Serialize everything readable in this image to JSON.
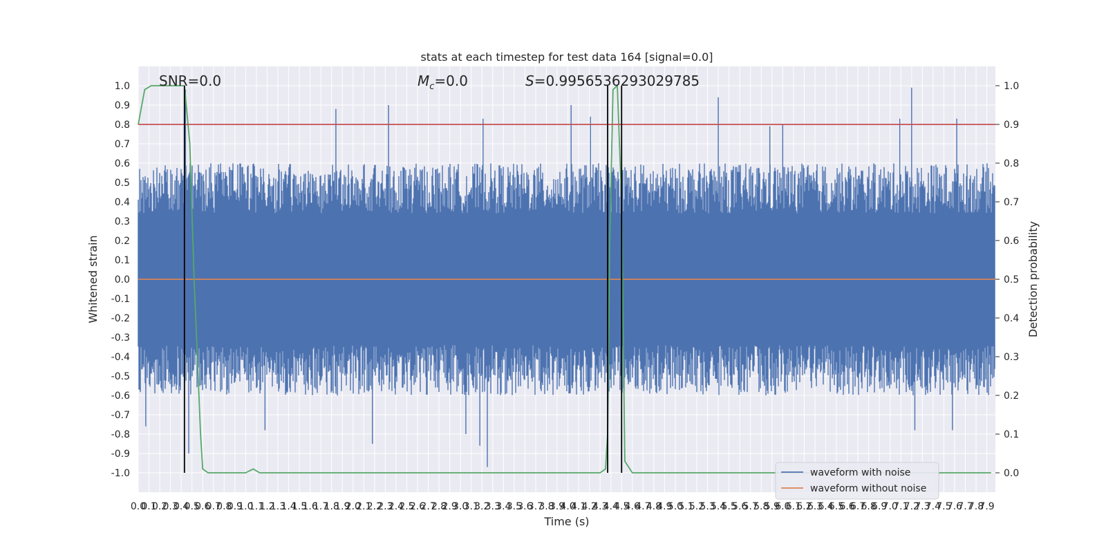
{
  "chart_data": {
    "type": "line",
    "title": "stats at each timestep for test data 164 [signal=0.0]",
    "xlabel": "Time (s)",
    "ylabel": "Whitened strain",
    "ylabel_right": "Detection probability",
    "xlim": [
      0,
      7.98
    ],
    "ylim": [
      -1.1,
      1.1
    ],
    "ylim_right": [
      -0.05,
      1.05
    ],
    "x_ticks": [
      0.0,
      0.1,
      0.2,
      0.3,
      0.4,
      0.5,
      0.6,
      0.7,
      0.8,
      0.9,
      1.0,
      1.1,
      1.2,
      1.3,
      1.4,
      1.5,
      1.6,
      1.7,
      1.8,
      1.9,
      2.0,
      2.1,
      2.2,
      2.3,
      2.4,
      2.5,
      2.6,
      2.7,
      2.8,
      2.9,
      3.0,
      3.1,
      3.2,
      3.3,
      3.4,
      3.5,
      3.6,
      3.7,
      3.8,
      3.9,
      4.0,
      4.1,
      4.2,
      4.3,
      4.4,
      4.5,
      4.6,
      4.7,
      4.8,
      4.9,
      5.0,
      5.1,
      5.2,
      5.3,
      5.4,
      5.5,
      5.6,
      5.7,
      5.8,
      5.9,
      6.0,
      6.1,
      6.2,
      6.3,
      6.4,
      6.5,
      6.6,
      6.7,
      6.8,
      6.9,
      7.0,
      7.1,
      7.2,
      7.3,
      7.4,
      7.5,
      7.6,
      7.7,
      7.8,
      7.9
    ],
    "x_tick_labels": [
      "0.0",
      "0.1",
      "0.2",
      "0.3",
      "0.4",
      "0.5",
      "0.6",
      "0.7",
      "0.8",
      "0.9",
      "1.0",
      "1.1",
      "1.2",
      "1.3",
      "1.4",
      "1.5",
      "1.6",
      "1.7",
      "1.8",
      "1.9",
      "2.0",
      "2.1",
      "2.2",
      "2.3",
      "2.4",
      "2.5",
      "2.6",
      "2.7",
      "2.8",
      "2.9",
      "3.0",
      "3.1",
      "3.2",
      "3.3",
      "3.4",
      "3.5",
      "3.6",
      "3.7",
      "3.8",
      "3.9",
      "4.0",
      "4.1",
      "4.2",
      "4.3",
      "4.4",
      "4.5",
      "4.6",
      "4.7",
      "4.8",
      "4.9",
      "5.0",
      "5.1",
      "5.2",
      "5.3",
      "5.4",
      "5.5",
      "5.6",
      "5.7",
      "5.8",
      "5.9",
      "6.0",
      "6.1",
      "6.2",
      "6.3",
      "6.4",
      "6.5",
      "6.6",
      "6.7",
      "6.8",
      "6.9",
      "7.0",
      "7.1",
      "7.2",
      "7.3",
      "7.4",
      "7.5",
      "7.6",
      "7.7",
      "7.8",
      "7.9"
    ],
    "y_ticks": [
      -1.0,
      -0.9,
      -0.8,
      -0.7,
      -0.6,
      -0.5,
      -0.4,
      -0.3,
      -0.2,
      -0.1,
      0.0,
      0.1,
      0.2,
      0.3,
      0.4,
      0.5,
      0.6,
      0.7,
      0.8,
      0.9,
      1.0
    ],
    "y_tick_labels": [
      "-1.0",
      "-0.9",
      "-0.8",
      "-0.7",
      "-0.6",
      "-0.5",
      "-0.4",
      "-0.3",
      "-0.2",
      "-0.1",
      "0.0",
      "0.1",
      "0.2",
      "0.3",
      "0.4",
      "0.5",
      "0.6",
      "0.7",
      "0.8",
      "0.9",
      "1.0"
    ],
    "y_right_ticks": [
      0.0,
      0.1,
      0.2,
      0.3,
      0.4,
      0.5,
      0.6,
      0.7,
      0.8,
      0.9,
      1.0
    ],
    "y_right_tick_labels": [
      "0.0",
      "0.1",
      "0.2",
      "0.3",
      "0.4",
      "0.5",
      "0.6",
      "0.7",
      "0.8",
      "0.9",
      "1.0"
    ],
    "threshold": 0.9,
    "vertical_lines_x": [
      0.43,
      4.37,
      4.5
    ],
    "grid": true,
    "legend_position": "lower right",
    "annotations": {
      "snr": "SNR=0.0",
      "mc_symbol": "M",
      "mc_subscript": "c",
      "mc_value": "=0.0",
      "s_symbol": "S",
      "s_value": "=0.9956536293029785"
    },
    "series": [
      {
        "name": "waveform with noise",
        "color": "#4c72b0",
        "kind": "noise",
        "envelope_typical": 0.4,
        "envelope_max": 1.0,
        "spikes": [
          {
            "x": 1.84,
            "y": 0.88
          },
          {
            "x": 2.33,
            "y": 0.9
          },
          {
            "x": 3.21,
            "y": 0.83
          },
          {
            "x": 4.03,
            "y": 0.9
          },
          {
            "x": 4.21,
            "y": 0.84
          },
          {
            "x": 5.4,
            "y": 0.94
          },
          {
            "x": 7.2,
            "y": 0.99
          },
          {
            "x": 7.09,
            "y": 0.83
          },
          {
            "x": 7.62,
            "y": 0.83
          },
          {
            "x": 6.0,
            "y": 0.8
          },
          {
            "x": 5.88,
            "y": 0.79
          },
          {
            "x": 0.44,
            "y": 0.98
          },
          {
            "x": 3.25,
            "y": -0.97
          },
          {
            "x": 0.47,
            "y": -0.9
          },
          {
            "x": 1.18,
            "y": -0.78
          },
          {
            "x": 2.18,
            "y": -0.85
          },
          {
            "x": 3.05,
            "y": -0.8
          },
          {
            "x": 3.18,
            "y": -0.86
          },
          {
            "x": 7.58,
            "y": -0.78
          },
          {
            "x": 7.23,
            "y": -0.78
          },
          {
            "x": 0.07,
            "y": -0.76
          }
        ]
      },
      {
        "name": "waveform without noise",
        "color": "#dd8452",
        "x": [
          0.0,
          7.98
        ],
        "y": [
          0.0,
          0.0
        ]
      },
      {
        "name": "",
        "color": "#55a868",
        "axis": "right",
        "x": [
          0.0,
          0.06,
          0.12,
          0.2,
          0.3,
          0.38,
          0.43,
          0.48,
          0.52,
          0.58,
          0.6,
          0.65,
          0.7,
          1.0,
          1.07,
          1.13,
          1.2,
          3.0,
          4.3,
          4.35,
          4.37,
          4.39,
          4.42,
          4.46,
          4.5,
          4.53,
          4.6,
          4.66,
          5.0,
          7.94
        ],
        "y": [
          0.9,
          0.99,
          1.0,
          1.0,
          1.0,
          1.0,
          1.0,
          0.85,
          0.5,
          0.1,
          0.01,
          0.0,
          0.0,
          0.0,
          0.01,
          0.0,
          0.0,
          0.0,
          0.0,
          0.01,
          0.1,
          0.6,
          0.99,
          1.0,
          0.7,
          0.03,
          0.0,
          0.0,
          0.0,
          0.0
        ]
      },
      {
        "name": "",
        "color": "#c44e52",
        "axis": "right",
        "kind": "threshold",
        "x": [
          0.0,
          7.98
        ],
        "y": [
          0.9,
          0.9
        ]
      }
    ]
  }
}
